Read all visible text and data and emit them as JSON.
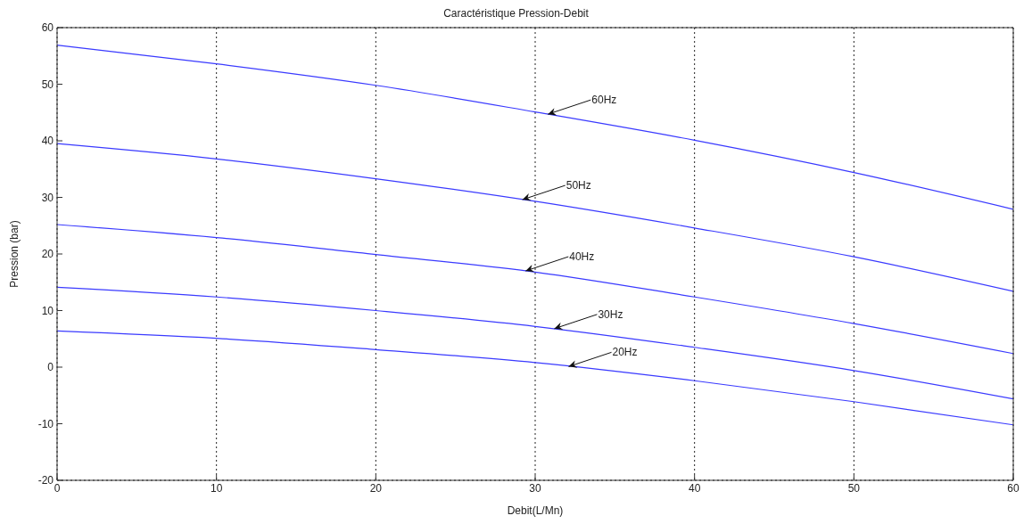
{
  "chart_data": {
    "type": "line",
    "title": "Caractéristique Pression-Debit",
    "xlabel": "Debit(L/Mn)",
    "ylabel": "Pression (bar)",
    "x": [
      0,
      10,
      20,
      30,
      40,
      50,
      60
    ],
    "series": [
      {
        "color": "#3a3aff",
        "values": [
          56.9,
          53.6,
          49.8,
          45.1,
          40.1,
          34.4,
          27.9
        ]
      },
      {
        "color": "#3a3aff",
        "values": [
          39.5,
          36.8,
          33.3,
          29.3,
          24.6,
          19.5,
          13.4
        ]
      },
      {
        "color": "#3a3aff",
        "values": [
          25.2,
          22.9,
          19.9,
          16.8,
          12.4,
          7.7,
          2.4
        ]
      },
      {
        "color": "#3a3aff",
        "values": [
          14.1,
          12.4,
          10.0,
          7.2,
          3.5,
          -0.6,
          -5.6
        ]
      },
      {
        "color": "#3a3aff",
        "values": [
          6.4,
          5.1,
          3.1,
          0.8,
          -2.4,
          -6.1,
          -10.2
        ]
      }
    ],
    "xlim": [
      0,
      60
    ],
    "xticks": [
      0,
      10,
      20,
      30,
      40,
      50,
      60
    ],
    "ylim": [
      -20,
      60
    ],
    "yticks": [
      -20,
      -10,
      0,
      10,
      20,
      30,
      40,
      50,
      60
    ],
    "grid": true,
    "line_style": "solid",
    "marker": "none",
    "annotations": [
      {
        "text": "60Hz",
        "x": 30.8,
        "y": 44.7
      },
      {
        "text": "50Hz",
        "x": 29.2,
        "y": 29.6
      },
      {
        "text": "40Hz",
        "x": 29.4,
        "y": 17.0
      },
      {
        "text": "30Hz",
        "x": 31.2,
        "y": 6.8
      },
      {
        "text": "20Hz",
        "x": 32.1,
        "y": 0.1
      }
    ]
  }
}
